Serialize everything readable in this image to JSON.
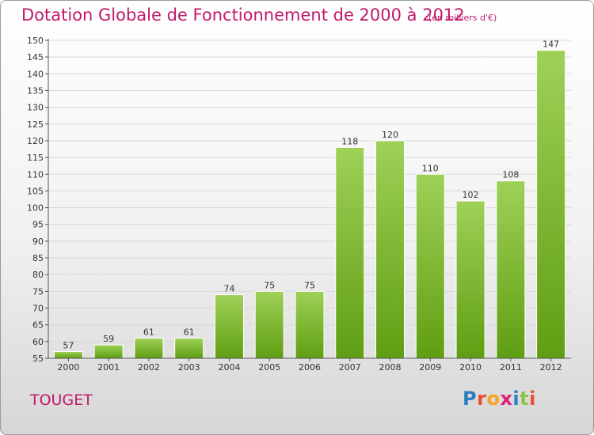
{
  "header": {
    "title": "Dotation Globale de Fonctionnement de 2000 à 2012",
    "unit": "(en milliers d'€)"
  },
  "footer": {
    "commune": "TOUGET",
    "logo": "Proxiti"
  },
  "colors": {
    "title": "#c2186a",
    "bar_top": "#9fd158",
    "bar_bottom": "#5f9e12"
  },
  "chart_data": {
    "type": "bar",
    "title": "Dotation Globale de Fonctionnement de 2000 à 2012",
    "subtitle": "(en milliers d'€)",
    "xlabel": "",
    "ylabel": "",
    "categories": [
      "2000",
      "2001",
      "2002",
      "2003",
      "2004",
      "2005",
      "2006",
      "2007",
      "2008",
      "2009",
      "2010",
      "2011",
      "2012"
    ],
    "values": [
      57,
      59,
      61,
      61,
      74,
      75,
      75,
      118,
      120,
      110,
      102,
      108,
      147
    ],
    "ylim": [
      55,
      150
    ],
    "yticks": [
      55,
      60,
      65,
      70,
      75,
      80,
      85,
      90,
      95,
      100,
      105,
      110,
      115,
      120,
      125,
      130,
      135,
      140,
      145,
      150
    ],
    "grid": true,
    "legend": "none"
  }
}
